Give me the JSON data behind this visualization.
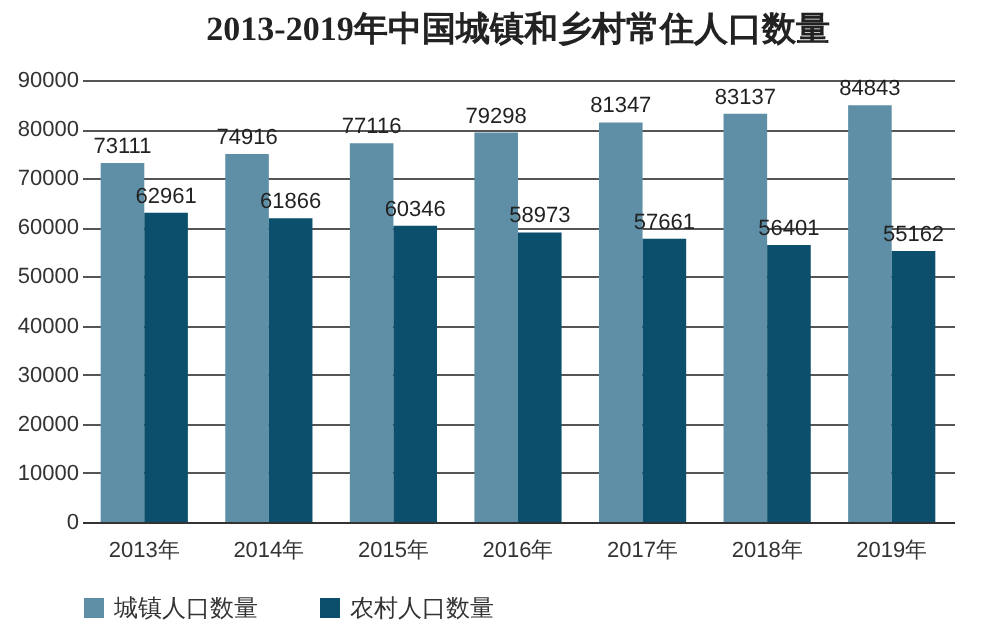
{
  "chart_data": {
    "type": "bar",
    "title": "2013-2019年中国城镇和乡村常住人口数量",
    "categories": [
      "2013年",
      "2014年",
      "2015年",
      "2016年",
      "2017年",
      "2018年",
      "2019年"
    ],
    "series": [
      {
        "name": "城镇人口数量",
        "color": "#5f8fa6",
        "values": [
          73111,
          74916,
          77116,
          79298,
          81347,
          83137,
          84843
        ]
      },
      {
        "name": "农村人口数量",
        "color": "#0b4f6c",
        "values": [
          62961,
          61866,
          60346,
          58973,
          57661,
          56401,
          55162
        ]
      }
    ],
    "ylim": [
      0,
      90000
    ],
    "yticks": [
      0,
      10000,
      20000,
      30000,
      40000,
      50000,
      60000,
      70000,
      80000,
      90000
    ],
    "grid": "y",
    "legend": "bottom",
    "data_labels": true
  }
}
